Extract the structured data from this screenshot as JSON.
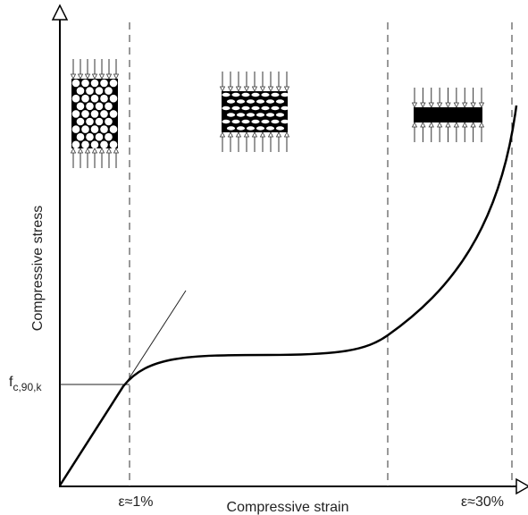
{
  "axes": {
    "y_label": "Compressive stress",
    "x_label": "Compressive strain"
  },
  "stress_level": {
    "symbol": "f",
    "subscript": "c,90,k"
  },
  "strain_marks": [
    "ε≈1%",
    "ε≈30%"
  ]
}
